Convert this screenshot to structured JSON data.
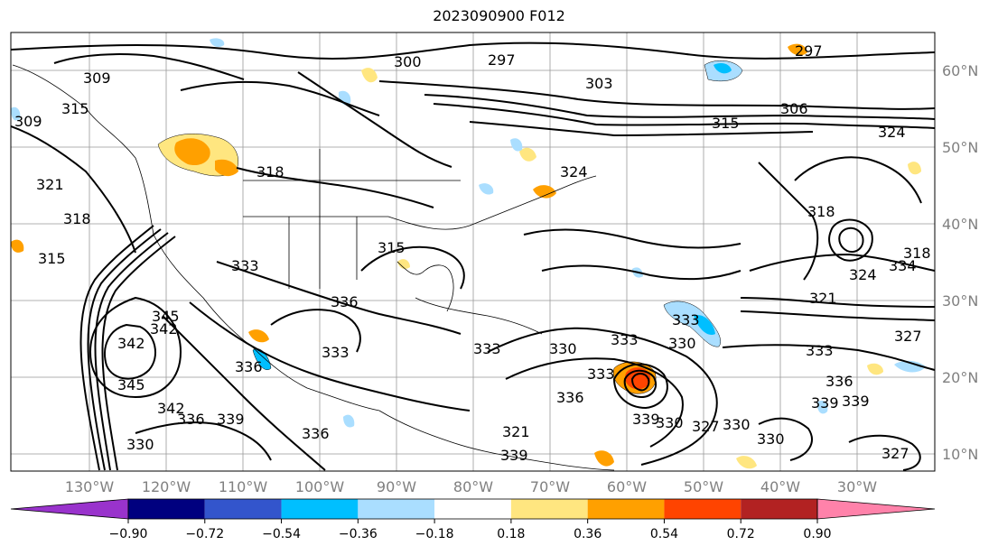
{
  "title": "2023090900 F012",
  "lon_labels": [
    "130°W",
    "120°W",
    "110°W",
    "100°W",
    "90°W",
    "80°W",
    "70°W",
    "60°W",
    "50°W",
    "40°W",
    "30°W"
  ],
  "lat_labels": [
    "60°N",
    "50°N",
    "40°N",
    "30°N",
    "20°N",
    "10°N"
  ],
  "contour_labels": [
    "297",
    "300",
    "297",
    "303",
    "306",
    "315",
    "324",
    "309",
    "309",
    "315",
    "321",
    "318",
    "315",
    "318",
    "324",
    "315",
    "333",
    "336",
    "345",
    "342",
    "342",
    "345",
    "342",
    "336",
    "339",
    "330",
    "336",
    "336",
    "333",
    "333",
    "330",
    "333",
    "333",
    "336",
    "339",
    "321",
    "339",
    "330",
    "327",
    "330",
    "330",
    "333",
    "333",
    "336",
    "339",
    "327",
    "318",
    "321",
    "324",
    "334",
    "339",
    "330",
    "327",
    "318"
  ],
  "colorbar": {
    "tick_labels": [
      "−0.90",
      "−0.72",
      "−0.54",
      "−0.36",
      "−0.18",
      "0.18",
      "0.36",
      "0.54",
      "0.72",
      "0.90"
    ],
    "colors": [
      "#9933cc",
      "#00007f",
      "#3355cc",
      "#00bfff",
      "#aadeff",
      "#ffffff",
      "#ffe680",
      "#ffa000",
      "#ff4400",
      "#b22222",
      "#ff82aa"
    ]
  }
}
